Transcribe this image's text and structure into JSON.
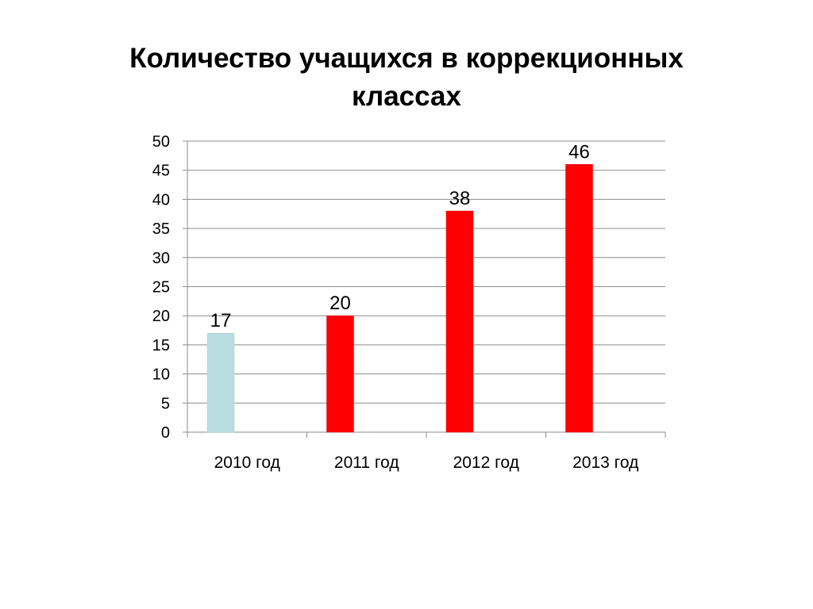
{
  "slide": {
    "title_line1": "Количество учащихся в коррекционных",
    "title_line2": "классах"
  },
  "chart_data": {
    "type": "bar",
    "title": "Количество учащихся в коррекционных классах",
    "categories": [
      "2010 год",
      "2011 год",
      "2012 год",
      "2013 год"
    ],
    "values": [
      17,
      20,
      38,
      46
    ],
    "bar_colors": [
      "#b7dde0",
      "#ff0000",
      "#ff0000",
      "#ff0000"
    ],
    "ylim": [
      0,
      50
    ],
    "y_ticks": [
      0,
      5,
      10,
      15,
      20,
      25,
      30,
      35,
      40,
      45,
      50
    ],
    "grid": true,
    "legend": "none",
    "data_labels": true
  }
}
